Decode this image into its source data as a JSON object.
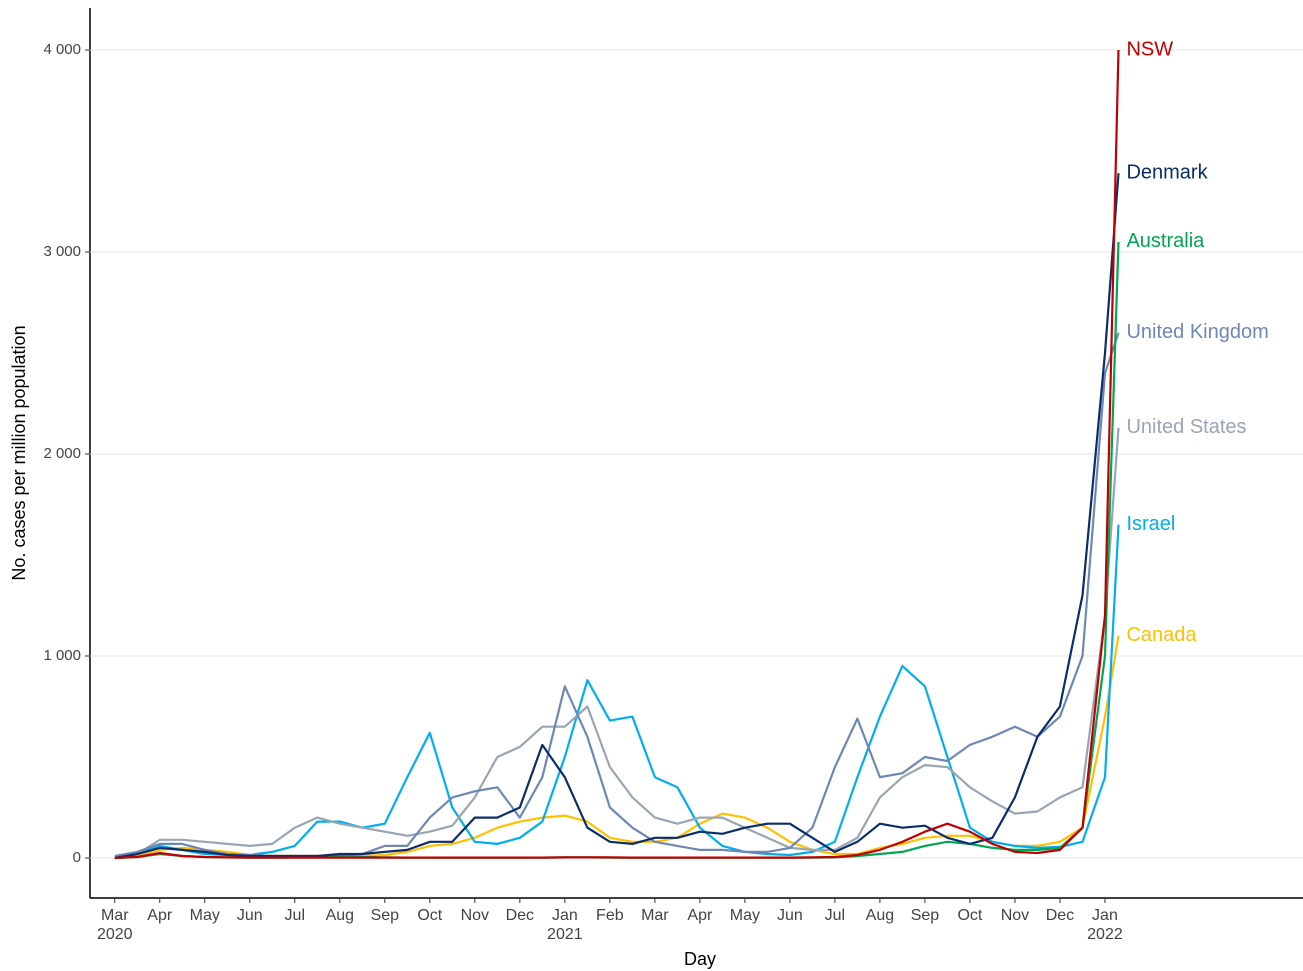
{
  "chart_data": {
    "type": "line",
    "x_label": "Day",
    "y_label": "No. cases per million population",
    "xlim": [
      -0.55,
      26.4
    ],
    "ylim": [
      -198,
      4208
    ],
    "xticks": [
      {
        "value": 0,
        "label": "Mar\n2020"
      },
      {
        "value": 1,
        "label": "Apr"
      },
      {
        "value": 2,
        "label": "May"
      },
      {
        "value": 3,
        "label": "Jun"
      },
      {
        "value": 4,
        "label": "Jul"
      },
      {
        "value": 5,
        "label": "Aug"
      },
      {
        "value": 6,
        "label": "Sep"
      },
      {
        "value": 7,
        "label": "Oct"
      },
      {
        "value": 8,
        "label": "Nov"
      },
      {
        "value": 9,
        "label": "Dec"
      },
      {
        "value": 10,
        "label": "Jan\n2021"
      },
      {
        "value": 11,
        "label": "Feb"
      },
      {
        "value": 12,
        "label": "Mar"
      },
      {
        "value": 13,
        "label": "Apr"
      },
      {
        "value": 14,
        "label": "May"
      },
      {
        "value": 15,
        "label": "Jun"
      },
      {
        "value": 16,
        "label": "Jul"
      },
      {
        "value": 17,
        "label": "Aug"
      },
      {
        "value": 18,
        "label": "Sep"
      },
      {
        "value": 19,
        "label": "Oct"
      },
      {
        "value": 20,
        "label": "Nov"
      },
      {
        "value": 21,
        "label": "Dec"
      },
      {
        "value": 22,
        "label": "Jan\n2022"
      }
    ],
    "yticks": [
      0,
      {
        "value": 1000,
        "label": "1 000"
      },
      {
        "value": 2000,
        "label": "2 000"
      },
      {
        "value": 3000,
        "label": "3 000"
      },
      {
        "value": 4000,
        "label": "4 000"
      }
    ],
    "grid": true,
    "x": [
      0,
      0.5,
      1,
      1.5,
      2,
      2.5,
      3,
      3.5,
      4,
      4.5,
      5,
      5.5,
      6,
      6.5,
      7,
      7.5,
      8,
      8.5,
      9,
      9.5,
      10,
      10.5,
      11,
      11.5,
      12,
      12.5,
      13,
      13.5,
      14,
      14.5,
      15,
      15.5,
      16,
      16.5,
      17,
      17.5,
      18,
      18.5,
      19,
      19.5,
      20,
      20.5,
      21,
      21.5,
      22,
      22.3
    ],
    "series": [
      {
        "name": "NSW",
        "color": "#c00000",
        "values": [
          0,
          5,
          25,
          10,
          5,
          3,
          2,
          2,
          2,
          2,
          2,
          2,
          2,
          2,
          2,
          2,
          2,
          2,
          2,
          2,
          3,
          3,
          3,
          2,
          2,
          2,
          2,
          2,
          2,
          2,
          2,
          3,
          5,
          15,
          40,
          80,
          130,
          170,
          130,
          70,
          30,
          25,
          40,
          150,
          1200,
          4000
        ]
      },
      {
        "name": "Denmark",
        "color": "#0b2d6b",
        "values": [
          0,
          20,
          50,
          40,
          30,
          15,
          10,
          10,
          10,
          10,
          20,
          20,
          30,
          40,
          80,
          80,
          200,
          200,
          250,
          560,
          400,
          150,
          80,
          70,
          100,
          100,
          130,
          120,
          150,
          170,
          170,
          100,
          30,
          80,
          170,
          150,
          160,
          100,
          70,
          100,
          300,
          600,
          750,
          1300,
          2500,
          3390
        ]
      },
      {
        "name": "Australia",
        "color": "#00a651",
        "values": [
          0,
          5,
          20,
          10,
          5,
          3,
          2,
          2,
          3,
          5,
          10,
          5,
          3,
          2,
          2,
          2,
          2,
          2,
          2,
          2,
          3,
          3,
          2,
          2,
          2,
          2,
          2,
          2,
          2,
          2,
          2,
          2,
          3,
          10,
          20,
          30,
          60,
          80,
          70,
          50,
          40,
          40,
          50,
          150,
          1000,
          3050
        ]
      },
      {
        "name": "United Kingdom",
        "color": "#6f87b5",
        "values": [
          10,
          30,
          70,
          70,
          40,
          20,
          15,
          10,
          10,
          10,
          15,
          20,
          60,
          60,
          200,
          300,
          330,
          350,
          200,
          400,
          850,
          600,
          250,
          150,
          80,
          60,
          40,
          40,
          30,
          30,
          50,
          150,
          450,
          690,
          400,
          420,
          500,
          480,
          560,
          600,
          650,
          600,
          700,
          1000,
          2400,
          2600
        ]
      },
      {
        "name": "United States",
        "color": "#9aa5b4",
        "values": [
          0,
          20,
          90,
          90,
          80,
          70,
          60,
          70,
          150,
          200,
          170,
          150,
          130,
          110,
          130,
          160,
          300,
          500,
          550,
          650,
          650,
          750,
          450,
          300,
          200,
          170,
          200,
          200,
          150,
          100,
          50,
          40,
          40,
          100,
          300,
          400,
          460,
          450,
          350,
          280,
          220,
          230,
          300,
          350,
          1200,
          2130
        ]
      },
      {
        "name": "Israel",
        "color": "#00aeef",
        "values": [
          0,
          20,
          60,
          40,
          20,
          15,
          15,
          30,
          60,
          180,
          180,
          150,
          170,
          400,
          620,
          250,
          80,
          70,
          100,
          180,
          500,
          880,
          680,
          700,
          400,
          350,
          150,
          60,
          30,
          20,
          15,
          30,
          80,
          400,
          700,
          950,
          850,
          500,
          150,
          80,
          60,
          50,
          55,
          80,
          400,
          1650
        ]
      },
      {
        "name": "Canada",
        "color": "#ffc000",
        "values": [
          0,
          10,
          40,
          50,
          40,
          30,
          15,
          10,
          10,
          10,
          10,
          10,
          15,
          30,
          60,
          70,
          100,
          150,
          180,
          200,
          210,
          180,
          100,
          80,
          80,
          100,
          170,
          220,
          200,
          150,
          80,
          40,
          20,
          20,
          50,
          70,
          100,
          110,
          110,
          80,
          60,
          60,
          80,
          150,
          700,
          1100
        ]
      }
    ]
  }
}
